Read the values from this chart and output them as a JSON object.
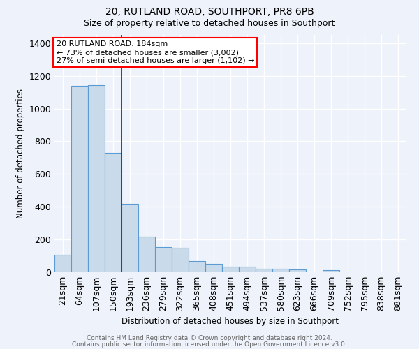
{
  "title1": "20, RUTLAND ROAD, SOUTHPORT, PR8 6PB",
  "title2": "Size of property relative to detached houses in Southport",
  "xlabel": "Distribution of detached houses by size in Southport",
  "ylabel": "Number of detached properties",
  "categories": [
    "21sqm",
    "64sqm",
    "107sqm",
    "150sqm",
    "193sqm",
    "236sqm",
    "279sqm",
    "322sqm",
    "365sqm",
    "408sqm",
    "451sqm",
    "494sqm",
    "537sqm",
    "580sqm",
    "623sqm",
    "666sqm",
    "709sqm",
    "752sqm",
    "795sqm",
    "838sqm",
    "881sqm"
  ],
  "values": [
    107,
    1140,
    1145,
    730,
    420,
    218,
    152,
    150,
    70,
    52,
    35,
    35,
    22,
    20,
    15,
    0,
    13,
    0,
    0,
    0,
    0
  ],
  "bar_color": "#c9daea",
  "bar_edge_color": "#5b9bd5",
  "annotation_text": "20 RUTLAND ROAD: 184sqm\n← 73% of detached houses are smaller (3,002)\n27% of semi-detached houses are larger (1,102) →",
  "annotation_box_color": "white",
  "annotation_box_edge": "red",
  "vline_color": "#8b0000",
  "vline_x_index": 4,
  "footer1": "Contains HM Land Registry data © Crown copyright and database right 2024.",
  "footer2": "Contains public sector information licensed under the Open Government Licence v3.0.",
  "ylim": [
    0,
    1450
  ],
  "background_color": "#eef2fa",
  "grid_color": "white"
}
